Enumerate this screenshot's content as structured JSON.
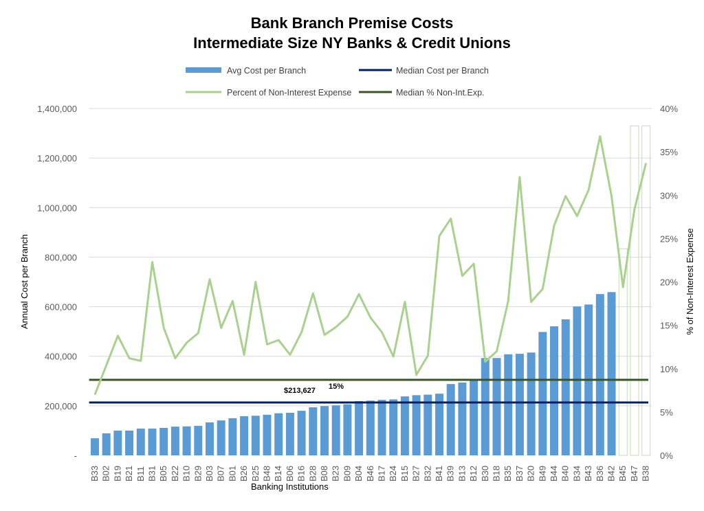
{
  "chart_data": {
    "type": "bar",
    "title": [
      "Bank Branch Premise Costs",
      "Intermediate Size NY Banks & Credit Unions"
    ],
    "xlabel": "Banking Institutions",
    "ylabel": "Annual Cost per Branch",
    "y2label": "% of Non-Interest Expense",
    "ylim": [
      0,
      1400000
    ],
    "y2lim": [
      0,
      40
    ],
    "yticks": [
      "-",
      "200,000",
      "400,000",
      "600,000",
      "800,000",
      "1,000,000",
      "1,200,000",
      "1,400,000"
    ],
    "y2ticks": [
      "0%",
      "5%",
      "10%",
      "15%",
      "20%",
      "25%",
      "30%",
      "35%",
      "40%"
    ],
    "grid": true,
    "legend_position": "top",
    "categories": [
      "B33",
      "B02",
      "B19",
      "B21",
      "B11",
      "B31",
      "B05",
      "B22",
      "B10",
      "B29",
      "B03",
      "B07",
      "B01",
      "B26",
      "B25",
      "B48",
      "B14",
      "B06",
      "B16",
      "B28",
      "B08",
      "B23",
      "B09",
      "B04",
      "B46",
      "B17",
      "B24",
      "B15",
      "B27",
      "B32",
      "B41",
      "B39",
      "B13",
      "B12",
      "B30",
      "B18",
      "B35",
      "B37",
      "B20",
      "B49",
      "B44",
      "B40",
      "B34",
      "B43",
      "B36",
      "B42",
      "B45",
      "B47",
      "B38"
    ],
    "series": [
      {
        "name": "Avg Cost per Branch",
        "type": "bar",
        "axis": "left",
        "color": "#5b9bd5",
        "values": [
          69000,
          89000,
          100000,
          100000,
          108000,
          108000,
          111000,
          116000,
          117000,
          119000,
          133000,
          141000,
          150000,
          158000,
          160000,
          164000,
          170000,
          172000,
          180000,
          194000,
          199000,
          202000,
          206000,
          219000,
          221000,
          224000,
          226000,
          238000,
          243000,
          245000,
          249000,
          288000,
          294000,
          308000,
          393000,
          393000,
          408000,
          410000,
          415000,
          498000,
          521000,
          549000,
          601000,
          609000,
          651000,
          659000,
          834000,
          1330000,
          1330000
        ],
        "outlined_categories": [
          "B45",
          "B47",
          "B38"
        ]
      },
      {
        "name": "Percent of Non-Interest Expense",
        "type": "line",
        "axis": "right",
        "color": "#a9d18e",
        "values": [
          7.0,
          10.4,
          13.8,
          11.2,
          10.9,
          22.3,
          14.7,
          11.2,
          13.0,
          14.1,
          20.3,
          14.7,
          17.8,
          11.6,
          20.0,
          12.8,
          13.3,
          11.6,
          14.2,
          18.7,
          13.9,
          14.8,
          16.0,
          18.6,
          15.9,
          14.2,
          11.4,
          17.7,
          9.3,
          11.5,
          25.3,
          27.3,
          20.7,
          22.1,
          10.8,
          12.0,
          17.8,
          32.1,
          17.7,
          19.2,
          26.5,
          29.9,
          27.6,
          30.6,
          36.8,
          29.9,
          19.4,
          28.4,
          33.7
        ]
      },
      {
        "name": "Median Cost per Branch",
        "type": "hline",
        "color": "#002060",
        "value": 213627,
        "label": "$213,627"
      },
      {
        "name": "Median % Non-Int.Exp.",
        "type": "hline",
        "color": "#375623",
        "value": 15,
        "label": "15%"
      }
    ]
  }
}
